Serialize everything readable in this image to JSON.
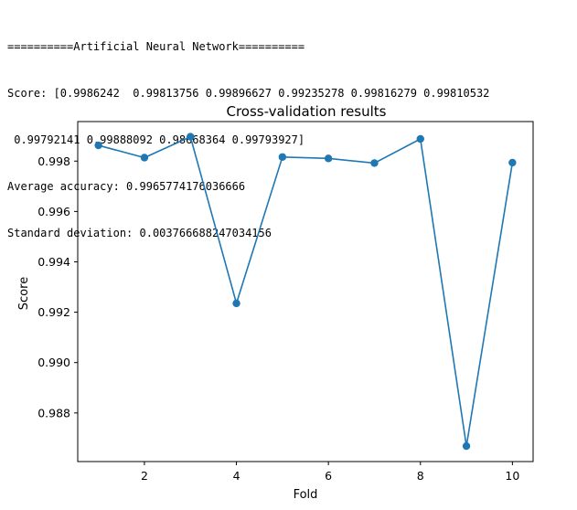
{
  "console": {
    "lines": [
      "==========Artificial Neural Network==========",
      "Score: [0.9986242  0.99813756 0.99896627 0.99235278 0.99816279 0.99810532",
      " 0.99792141 0.99888092 0.98668364 0.99793927]",
      "Average accuracy: 0.9965774176036666",
      "Standard deviation: 0.003766688247034156"
    ]
  },
  "chart_data": {
    "type": "line",
    "title": "Cross-validation results",
    "xlabel": "Fold",
    "ylabel": "Score",
    "x": [
      1,
      2,
      3,
      4,
      5,
      6,
      7,
      8,
      9,
      10
    ],
    "series": [
      {
        "values": [
          0.9986242,
          0.99813756,
          0.99896627,
          0.99235278,
          0.99816279,
          0.99810532,
          0.99792141,
          0.99888092,
          0.98668364,
          0.99793927
        ],
        "color": "#1f77b4",
        "marker": "circle"
      }
    ],
    "xticks": [
      2,
      4,
      6,
      8,
      10
    ],
    "xtick_labels": [
      "2",
      "4",
      "6",
      "8",
      "10"
    ],
    "yticks": [
      0.988,
      0.99,
      0.992,
      0.994,
      0.996,
      0.998
    ],
    "ytick_labels": [
      "0.988",
      "0.990",
      "0.992",
      "0.994",
      "0.996",
      "0.998"
    ],
    "xlim": [
      0.55,
      10.45
    ],
    "ylim": [
      0.98607,
      0.99957
    ],
    "grid": false
  }
}
